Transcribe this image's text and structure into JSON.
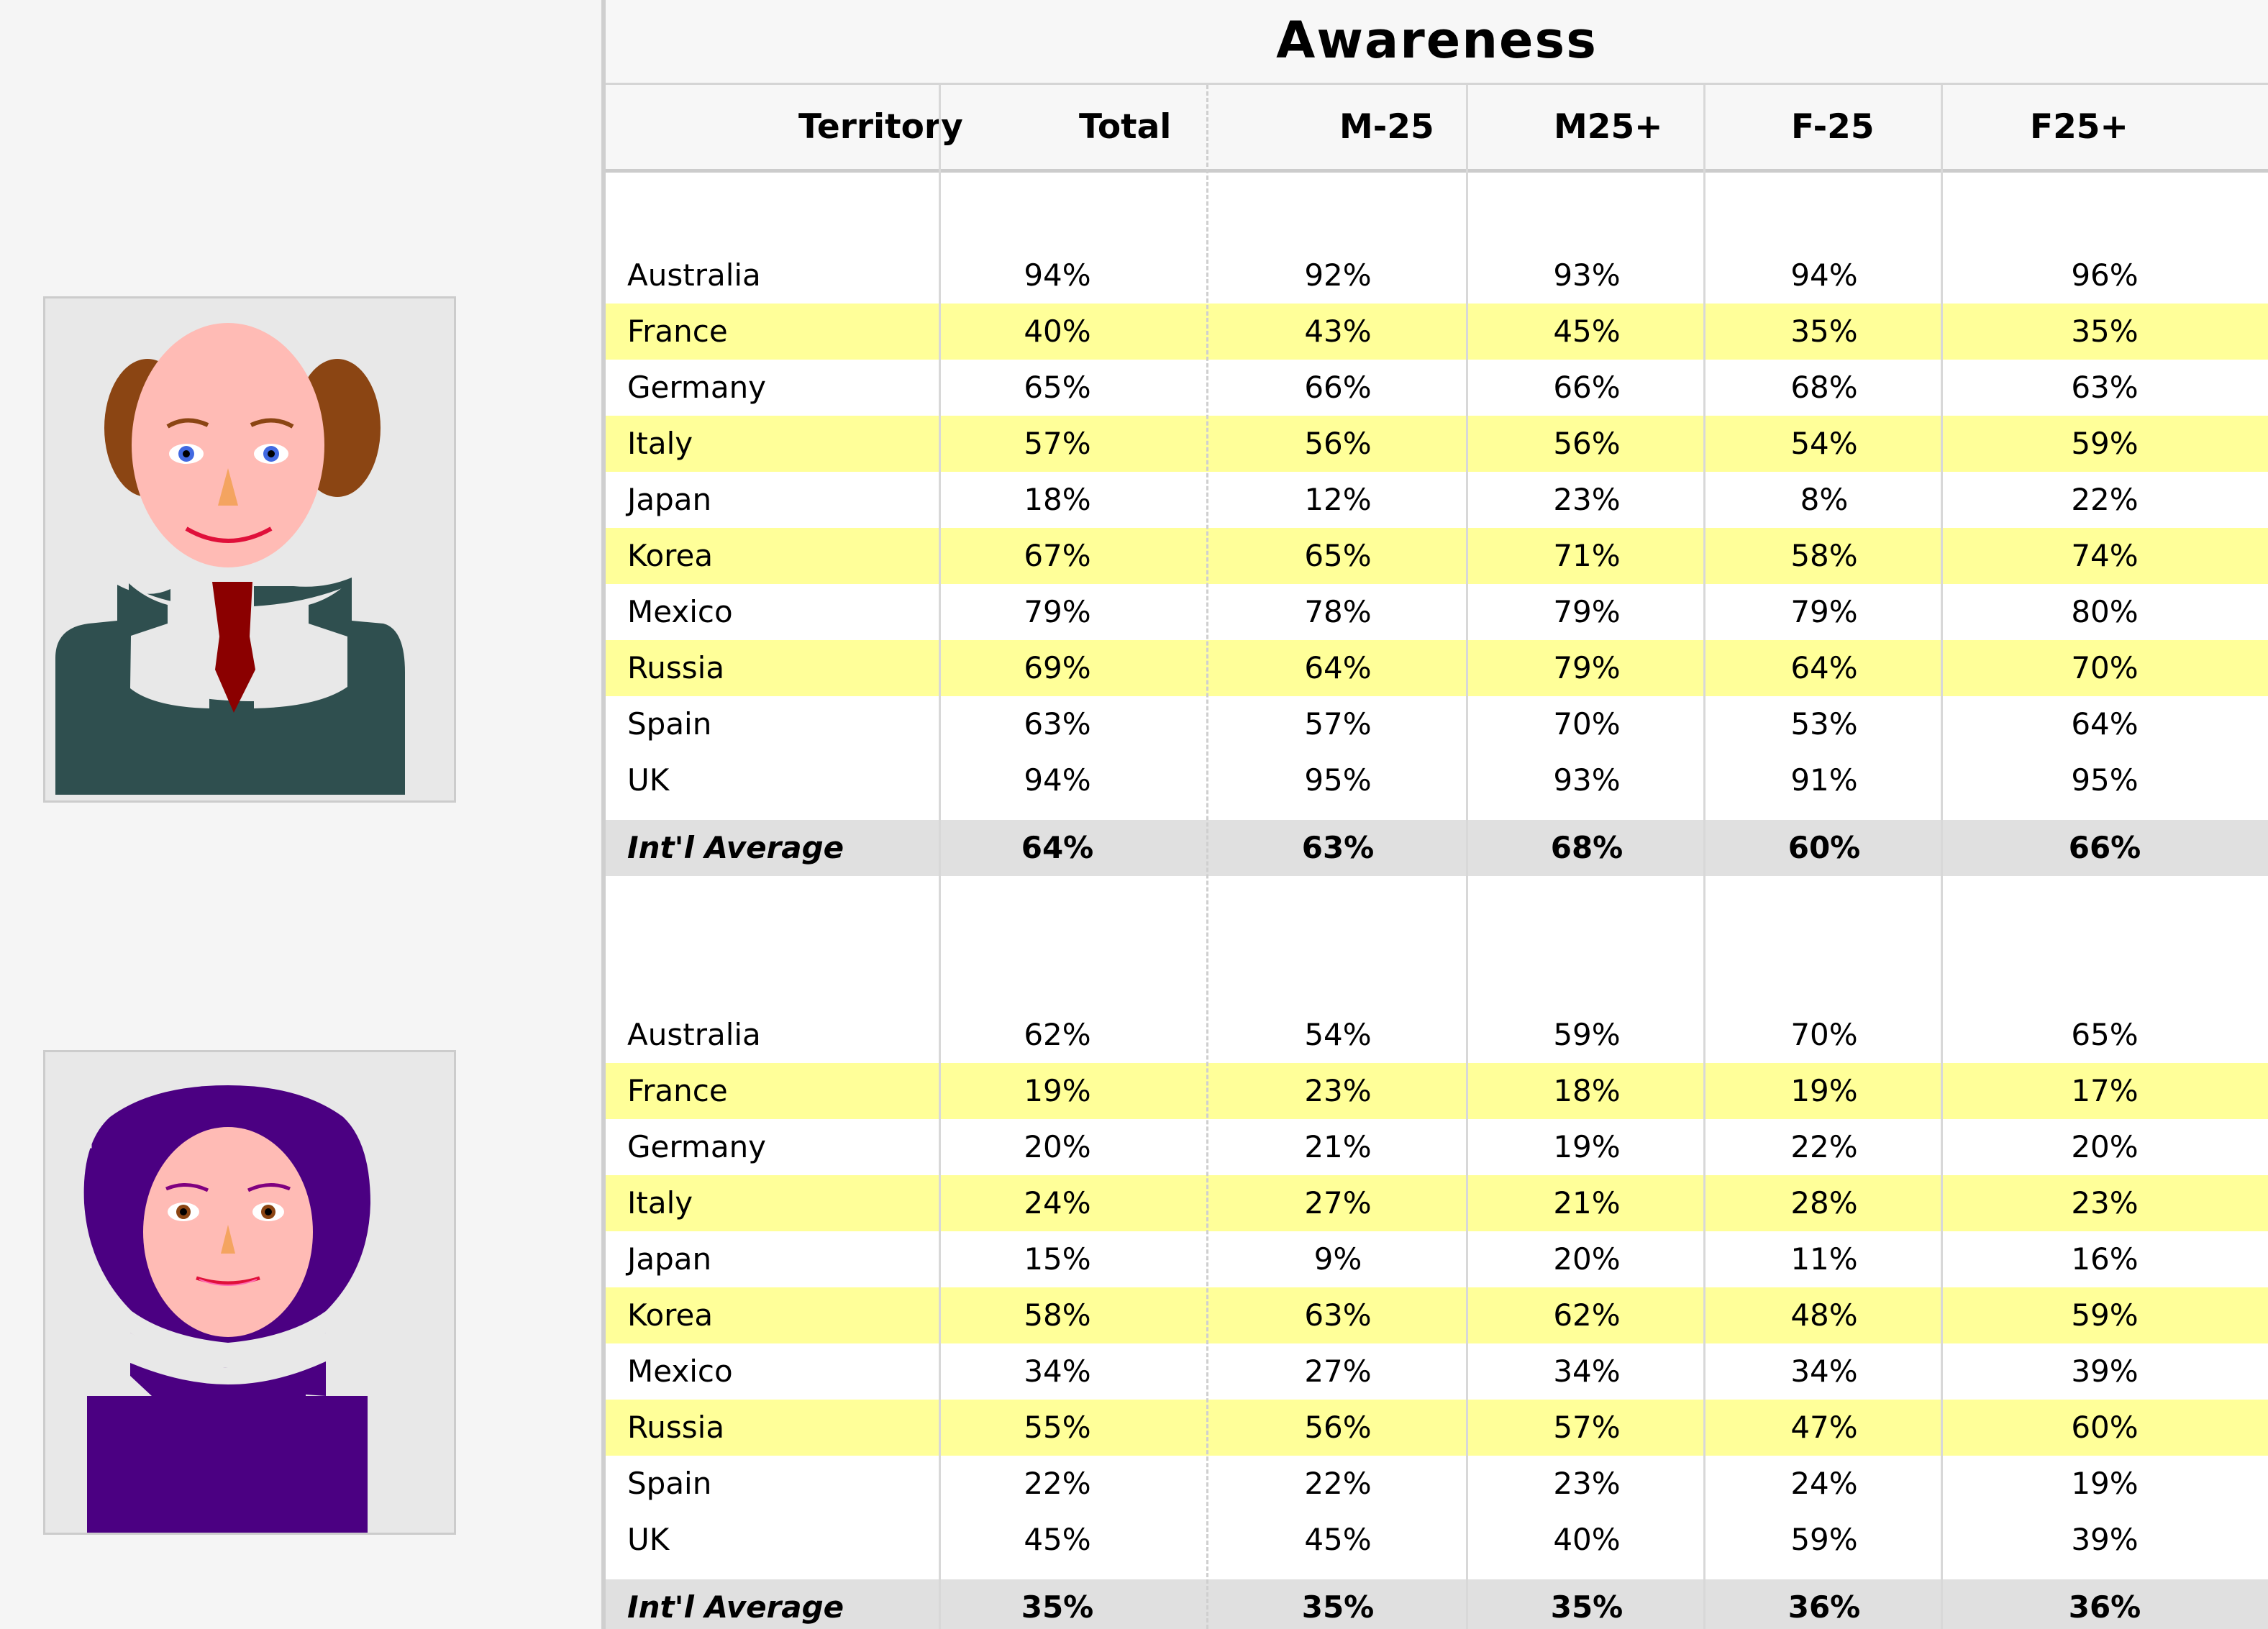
{
  "title": "Awareness",
  "columns": {
    "territory": "Territory",
    "total": "Total",
    "m_under25": "M-25",
    "m_over25": "M25+",
    "f_under25": "F-25",
    "f_over25": "F25+"
  },
  "colors": {
    "highlight": "#ffff99",
    "average_band": "#e0e0e0",
    "male_suit": "#2f4f4f",
    "male_tie": "#8b0000",
    "male_hair": "#8b4513",
    "female_hair": "#4b0082",
    "skin": "#ffbbb5"
  },
  "icons": {
    "male_avatar": "male-avatar-icon",
    "female_avatar": "female-avatar-icon"
  },
  "sections": [
    {
      "avatar": "male",
      "rows": [
        {
          "territory": "Australia",
          "total": "94%",
          "m_under25": "92%",
          "m_over25": "93%",
          "f_under25": "94%",
          "f_over25": "96%"
        },
        {
          "territory": "France",
          "total": "40%",
          "m_under25": "43%",
          "m_over25": "45%",
          "f_under25": "35%",
          "f_over25": "35%"
        },
        {
          "territory": "Germany",
          "total": "65%",
          "m_under25": "66%",
          "m_over25": "66%",
          "f_under25": "68%",
          "f_over25": "63%"
        },
        {
          "territory": "Italy",
          "total": "57%",
          "m_under25": "56%",
          "m_over25": "56%",
          "f_under25": "54%",
          "f_over25": "59%"
        },
        {
          "territory": "Japan",
          "total": "18%",
          "m_under25": "12%",
          "m_over25": "23%",
          "f_under25": "8%",
          "f_over25": "22%"
        },
        {
          "territory": "Korea",
          "total": "67%",
          "m_under25": "65%",
          "m_over25": "71%",
          "f_under25": "58%",
          "f_over25": "74%"
        },
        {
          "territory": "Mexico",
          "total": "79%",
          "m_under25": "78%",
          "m_over25": "79%",
          "f_under25": "79%",
          "f_over25": "80%"
        },
        {
          "territory": "Russia",
          "total": "69%",
          "m_under25": "64%",
          "m_over25": "79%",
          "f_under25": "64%",
          "f_over25": "70%"
        },
        {
          "territory": "Spain",
          "total": "63%",
          "m_under25": "57%",
          "m_over25": "70%",
          "f_under25": "53%",
          "f_over25": "64%"
        },
        {
          "territory": "UK",
          "total": "94%",
          "m_under25": "95%",
          "m_over25": "93%",
          "f_under25": "91%",
          "f_over25": "95%"
        }
      ],
      "average": {
        "territory": "Int'l Average",
        "total": "64%",
        "m_under25": "63%",
        "m_over25": "68%",
        "f_under25": "60%",
        "f_over25": "66%"
      }
    },
    {
      "avatar": "female",
      "rows": [
        {
          "territory": "Australia",
          "total": "62%",
          "m_under25": "54%",
          "m_over25": "59%",
          "f_under25": "70%",
          "f_over25": "65%"
        },
        {
          "territory": "France",
          "total": "19%",
          "m_under25": "23%",
          "m_over25": "18%",
          "f_under25": "19%",
          "f_over25": "17%"
        },
        {
          "territory": "Germany",
          "total": "20%",
          "m_under25": "21%",
          "m_over25": "19%",
          "f_under25": "22%",
          "f_over25": "20%"
        },
        {
          "territory": "Italy",
          "total": "24%",
          "m_under25": "27%",
          "m_over25": "21%",
          "f_under25": "28%",
          "f_over25": "23%"
        },
        {
          "territory": "Japan",
          "total": "15%",
          "m_under25": "9%",
          "m_over25": "20%",
          "f_under25": "11%",
          "f_over25": "16%"
        },
        {
          "territory": "Korea",
          "total": "58%",
          "m_under25": "63%",
          "m_over25": "62%",
          "f_under25": "48%",
          "f_over25": "59%"
        },
        {
          "territory": "Mexico",
          "total": "34%",
          "m_under25": "27%",
          "m_over25": "34%",
          "f_under25": "34%",
          "f_over25": "39%"
        },
        {
          "territory": "Russia",
          "total": "55%",
          "m_under25": "56%",
          "m_over25": "57%",
          "f_under25": "47%",
          "f_over25": "60%"
        },
        {
          "territory": "Spain",
          "total": "22%",
          "m_under25": "22%",
          "m_over25": "23%",
          "f_under25": "24%",
          "f_over25": "19%"
        },
        {
          "territory": "UK",
          "total": "45%",
          "m_under25": "45%",
          "m_over25": "40%",
          "f_under25": "59%",
          "f_over25": "39%"
        }
      ],
      "average": {
        "territory": "Int'l Average",
        "total": "35%",
        "m_under25": "35%",
        "m_over25": "35%",
        "f_under25": "36%",
        "f_over25": "36%"
      }
    }
  ]
}
